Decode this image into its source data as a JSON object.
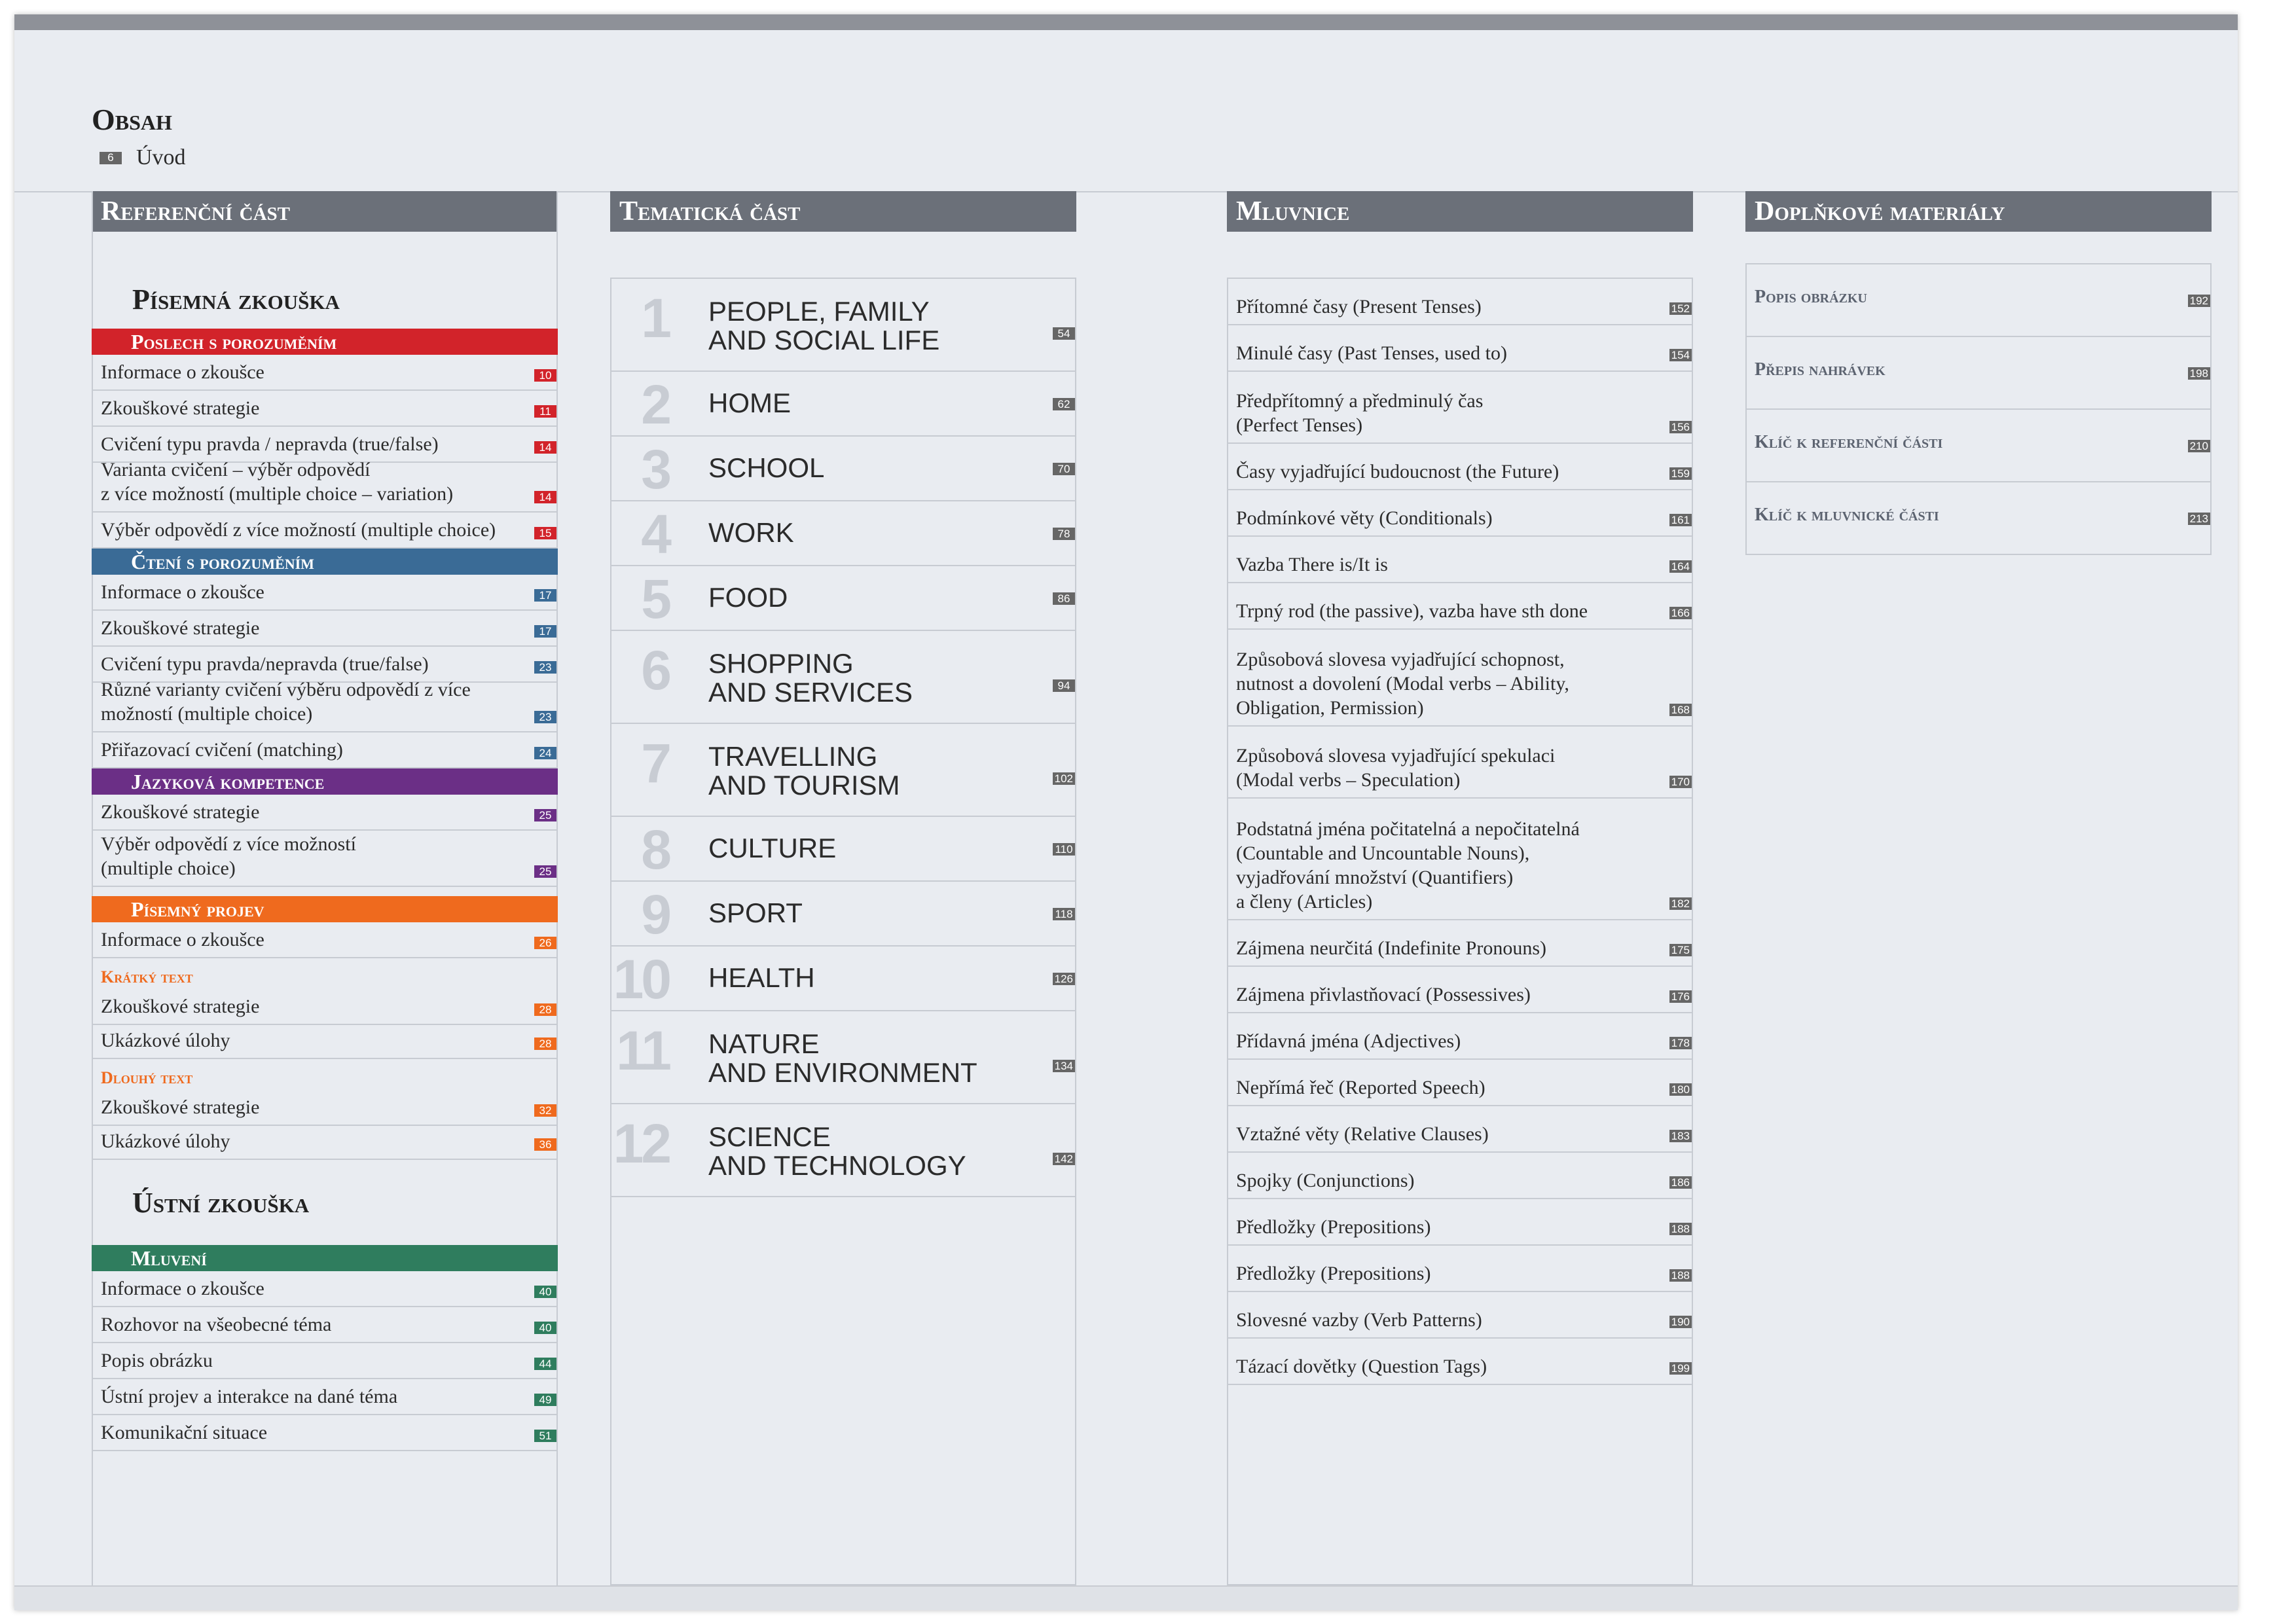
{
  "title": "Obsah",
  "intro": {
    "page": "6",
    "label": "Úvod"
  },
  "columns": {
    "reference": "Referenční část",
    "thematic": "Tematická část",
    "grammar": "Mluvnice",
    "extra": "Doplňkové materiály"
  },
  "colors": {
    "red": "#d2232a",
    "blue": "#3a6b96",
    "purple": "#6b2f86",
    "orange": "#ef6a1e",
    "green": "#2f7d5e",
    "grey": "#6b7079"
  },
  "written_exam": {
    "title": "Písemná zkouška",
    "listening": {
      "title": "Poslech s porozuměním",
      "items": [
        {
          "text": "Informace o zkoušce",
          "page": "10"
        },
        {
          "text": "Zkouškové strategie",
          "page": "11"
        },
        {
          "text": "Cvičení typu pravda / nepravda (true/false)",
          "page": "14"
        },
        {
          "text": "Varianta cvičení – výběr odpovědí",
          "text2": "z více možností (multiple choice – variation)",
          "page": "14"
        },
        {
          "text": "Výběr odpovědí z více možností (multiple choice)",
          "page": "15"
        }
      ]
    },
    "reading": {
      "title": "Čtení s porozuměním",
      "items": [
        {
          "text": "Informace o zkoušce",
          "page": "17"
        },
        {
          "text": "Zkouškové strategie",
          "page": "17"
        },
        {
          "text": "Cvičení typu pravda/nepravda (true/false)",
          "page": "23"
        },
        {
          "text": "Různé varianty cvičení výběru odpovědí z více",
          "text2": "možností (multiple choice)",
          "page": "23"
        },
        {
          "text": "Přiřazovací cvičení (matching)",
          "page": "24"
        }
      ]
    },
    "language": {
      "title": "Jazyková kompetence",
      "items": [
        {
          "text": "Zkouškové strategie",
          "page": "25"
        },
        {
          "text": "Výběr odpovědí z více možností",
          "text2": "(multiple choice)",
          "page": "25"
        }
      ]
    },
    "writing": {
      "title": "Písemný projev",
      "info": {
        "text": "Informace o zkoušce",
        "page": "26"
      },
      "short_label": "Krátký text",
      "short_items": [
        {
          "text": "Zkouškové strategie",
          "page": "28"
        },
        {
          "text": "Ukázkové úlohy",
          "page": "28"
        }
      ],
      "long_label": "Dlouhý text",
      "long_items": [
        {
          "text": "Zkouškové strategie",
          "page": "32"
        },
        {
          "text": "Ukázkové úlohy",
          "page": "36"
        }
      ]
    }
  },
  "oral_exam": {
    "title": "Ústní zkouška",
    "speaking": {
      "title": "Mluvení",
      "items": [
        {
          "text": "Informace o zkoušce",
          "page": "40"
        },
        {
          "text": "Rozhovor na všeobecné téma",
          "page": "40"
        },
        {
          "text": "Popis obrázku",
          "page": "44"
        },
        {
          "text": "Ústní projev a interakce na dané téma",
          "page": "49"
        },
        {
          "text": "Komunikační situace",
          "page": "51"
        }
      ]
    }
  },
  "topics": [
    {
      "num": "1",
      "line1": "PEOPLE, FAMILY",
      "line2": "AND SOCIAL LIFE",
      "page": "54"
    },
    {
      "num": "2",
      "line1": "HOME",
      "line2": "",
      "page": "62"
    },
    {
      "num": "3",
      "line1": "SCHOOL",
      "line2": "",
      "page": "70"
    },
    {
      "num": "4",
      "line1": "WORK",
      "line2": "",
      "page": "78"
    },
    {
      "num": "5",
      "line1": "FOOD",
      "line2": "",
      "page": "86"
    },
    {
      "num": "6",
      "line1": "SHOPPING",
      "line2": "AND SERVICES",
      "page": "94"
    },
    {
      "num": "7",
      "line1": "TRAVELLING",
      "line2": "AND TOURISM",
      "page": "102"
    },
    {
      "num": "8",
      "line1": "CULTURE",
      "line2": "",
      "page": "110"
    },
    {
      "num": "9",
      "line1": "SPORT",
      "line2": "",
      "page": "118"
    },
    {
      "num": "10",
      "line1": "HEALTH",
      "line2": "",
      "page": "126"
    },
    {
      "num": "11",
      "line1": "NATURE",
      "line2": "AND ENVIRONMENT",
      "page": "134"
    },
    {
      "num": "12",
      "line1": "SCIENCE",
      "line2": "AND TECHNOLOGY",
      "page": "142"
    }
  ],
  "grammar": [
    {
      "lines": [
        "Přítomné časy (Present Tenses)"
      ],
      "page": "152"
    },
    {
      "lines": [
        "Minulé časy (Past Tenses, used to)"
      ],
      "page": "154"
    },
    {
      "lines": [
        "Předpřítomný a předminulý čas",
        "(Perfect Tenses)"
      ],
      "page": "156"
    },
    {
      "lines": [
        "Časy vyjadřující budoucnost (the Future)"
      ],
      "page": "159"
    },
    {
      "lines": [
        "Podmínkové věty (Conditionals)"
      ],
      "page": "161"
    },
    {
      "lines": [
        "Vazba There is/It is"
      ],
      "page": "164"
    },
    {
      "lines": [
        "Trpný rod (the passive), vazba have sth done"
      ],
      "page": "166"
    },
    {
      "lines": [
        "Způsobová slovesa vyjadřující schopnost,",
        "nutnost a dovolení (Modal verbs – Ability,",
        "Obligation, Permission)"
      ],
      "page": "168"
    },
    {
      "lines": [
        "Způsobová slovesa vyjadřující spekulaci",
        "(Modal verbs – Speculation)"
      ],
      "page": "170"
    },
    {
      "lines": [
        " Podstatná jména počitatelná a nepočitatelná",
        "(Countable and Uncountable Nouns),",
        "vyjadřování množství (Quantifiers)",
        "a členy (Articles)"
      ],
      "page": "182"
    },
    {
      "lines": [
        "Zájmena neurčitá (Indefinite Pronouns)"
      ],
      "page": "175"
    },
    {
      "lines": [
        "Zájmena přivlastňovací (Possessives)"
      ],
      "page": "176"
    },
    {
      "lines": [
        "Přídavná jména (Adjectives)"
      ],
      "page": "178"
    },
    {
      "lines": [
        "Nepřímá řeč (Reported Speech)"
      ],
      "page": "180"
    },
    {
      "lines": [
        "Vztažné věty (Relative Clauses)"
      ],
      "page": "183"
    },
    {
      "lines": [
        "Spojky (Conjunctions)"
      ],
      "page": "186"
    },
    {
      "lines": [
        "Předložky (Prepositions)"
      ],
      "page": "188"
    },
    {
      "lines": [
        "Předložky (Prepositions)"
      ],
      "page": "188"
    },
    {
      "lines": [
        "Slovesné vazby (Verb Patterns)"
      ],
      "page": "190"
    },
    {
      "lines": [
        "Tázací dovětky (Question Tags)"
      ],
      "page": "199"
    }
  ],
  "extras": [
    {
      "text": "Popis obrázku",
      "page": "192"
    },
    {
      "text": "Přepis nahrávek",
      "page": "198"
    },
    {
      "text": "Klíč k referenční části",
      "page": "210"
    },
    {
      "text": "Klíč k mluvnické části",
      "page": "213"
    }
  ]
}
